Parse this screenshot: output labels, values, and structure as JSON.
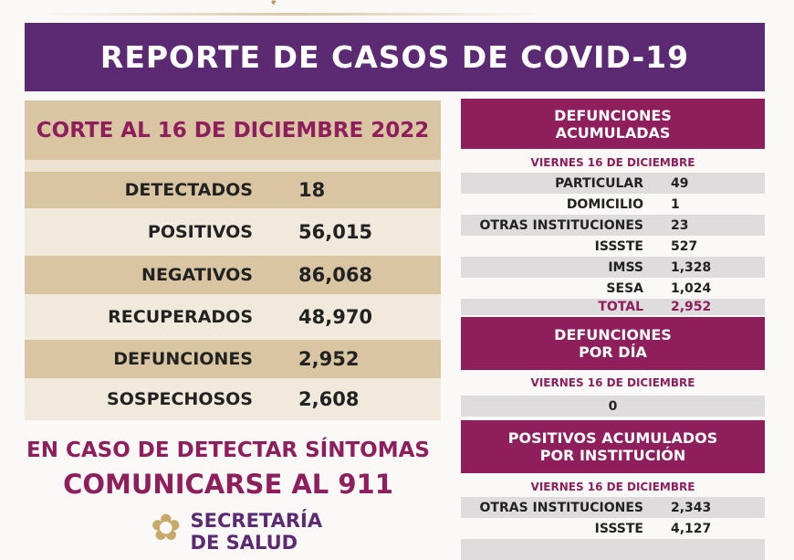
{
  "title": "REPORTE DE CASOS DE COVID-19",
  "corte": "CORTE AL 16 DE DICIEMBRE 2022",
  "stats": [
    {
      "label": "DETECTADOS",
      "value": "18"
    },
    {
      "label": "POSITIVOS",
      "value": "56,015"
    },
    {
      "label": "NEGATIVOS",
      "value": "86,068"
    },
    {
      "label": "RECUPERADOS",
      "value": "48,970"
    },
    {
      "label": "DEFUNCIONES",
      "value": "2,952"
    },
    {
      "label": "SOSPECHOSOS",
      "value": "2,608"
    }
  ],
  "cta": {
    "line1": "EN CASO DE DETECTAR SÍNTOMAS",
    "line2": "COMUNICARSE AL 911"
  },
  "logo": {
    "line1": "SECRETARÍA",
    "line2": "DE SALUD"
  },
  "defunciones_acumuladas": {
    "title1": "DEFUNCIONES",
    "title2": "ACUMULADAS",
    "date": "VIERNES 16 DE DICIEMBRE",
    "rows": [
      {
        "label": "PARTICULAR",
        "value": "49"
      },
      {
        "label": "DOMICILIO",
        "value": "1"
      },
      {
        "label": "OTRAS INSTITUCIONES",
        "value": "23"
      },
      {
        "label": "ISSSTE",
        "value": "527"
      },
      {
        "label": "IMSS",
        "value": "1,328"
      },
      {
        "label": "SESA",
        "value": "1,024"
      },
      {
        "label": "TOTAL",
        "value": "2,952"
      }
    ]
  },
  "defunciones_dia": {
    "title1": "DEFUNCIONES",
    "title2": "POR DÍA",
    "date": "VIERNES 16 DE DICIEMBRE",
    "value": "0"
  },
  "positivos_institucion": {
    "title1": "POSITIVOS ACUMULADOS",
    "title2": "POR INSTITUCIÓN",
    "date": "VIERNES 16 DE DICIEMBRE",
    "rows": [
      {
        "label": "OTRAS INSTITUCIONES",
        "value": "2,343"
      },
      {
        "label": "ISSSTE",
        "value": "4,127"
      }
    ]
  },
  "colors": {
    "purple": "#5c2a72",
    "magenta": "#8e1e5c",
    "tan": "#d9c5a2"
  }
}
